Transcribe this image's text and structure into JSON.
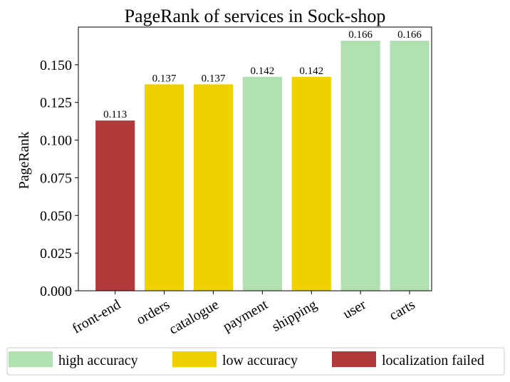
{
  "chart_data": {
    "type": "bar",
    "title": "PageRank of services in Sock-shop",
    "xlabel": "",
    "ylabel": "PageRank",
    "ylim": [
      0,
      0.175
    ],
    "yticks": [
      "0.000",
      "0.025",
      "0.050",
      "0.075",
      "0.100",
      "0.125",
      "0.150"
    ],
    "categories": [
      "front-end",
      "orders",
      "catalogue",
      "payment",
      "shipping",
      "user",
      "carts"
    ],
    "values": [
      0.113,
      0.137,
      0.137,
      0.142,
      0.142,
      0.166,
      0.166
    ],
    "value_labels": [
      "0.113",
      "0.137",
      "0.137",
      "0.142",
      "0.142",
      "0.166",
      "0.166"
    ],
    "bar_class": [
      "failed",
      "low",
      "low",
      "high",
      "low",
      "high",
      "high"
    ],
    "legend": {
      "placement": "bottom",
      "items": [
        {
          "key": "high",
          "label": "high accuracy",
          "color": "#b1e0b1"
        },
        {
          "key": "low",
          "label": "low accuracy",
          "color": "#f0d100"
        },
        {
          "key": "failed",
          "label": "localization failed",
          "color": "#b33a3a"
        }
      ]
    },
    "grid": false
  }
}
